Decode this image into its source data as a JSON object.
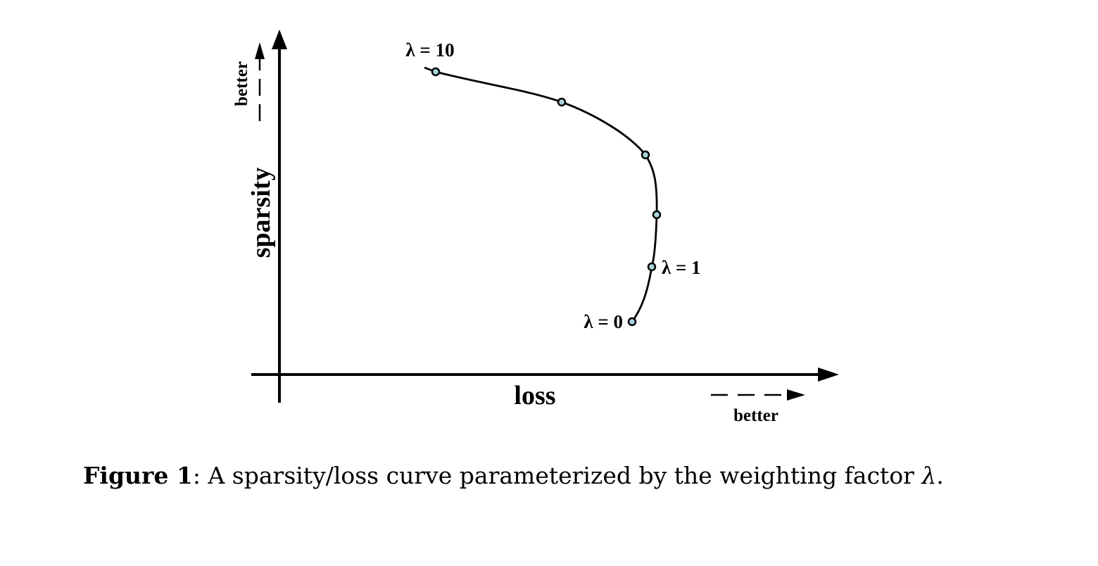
{
  "figure": {
    "axes": {
      "x_label": "loss",
      "y_label": "sparsity",
      "x_better_label": "better",
      "y_better_label": "better"
    },
    "annotations": [
      {
        "text": "λ = 10",
        "point_index": 0
      },
      {
        "text": "λ = 1",
        "point_index": 4
      },
      {
        "text": "λ = 0",
        "point_index": 5
      }
    ],
    "marker_color": "#a9d4dc"
  },
  "caption": {
    "label": "Figure 1",
    "separator": ": ",
    "text": "A sparsity/loss curve parameterized by the weighting factor ",
    "symbol": "λ",
    "end": "."
  }
}
